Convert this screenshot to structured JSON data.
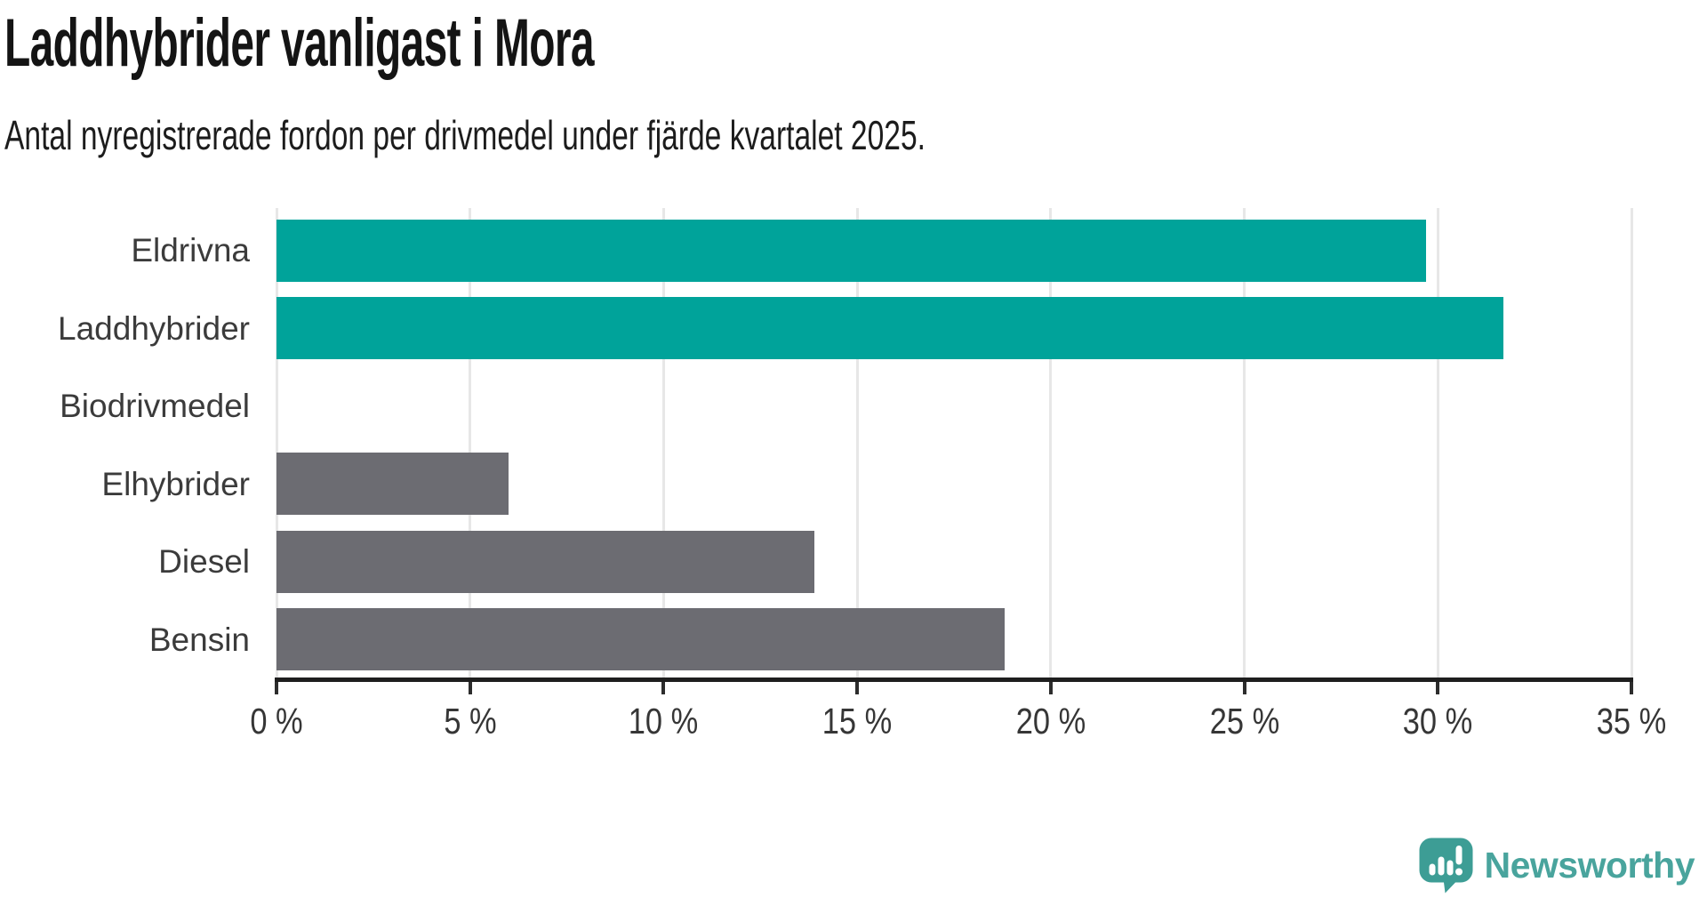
{
  "chart_data": {
    "type": "bar",
    "orientation": "horizontal",
    "title": "Laddhybrider vanligast i Mora",
    "subtitle": "Antal nyregistrerade fordon per drivmedel under fjärde kvartalet 2025.",
    "categories": [
      "Eldrivna",
      "Laddhybrider",
      "Biodrivmedel",
      "Elhybrider",
      "Diesel",
      "Bensin"
    ],
    "values": [
      29.7,
      31.7,
      0,
      6.0,
      13.9,
      18.8
    ],
    "unit": "%",
    "xlim": [
      0,
      35
    ],
    "x_tick_values": [
      0,
      5,
      10,
      15,
      20,
      25,
      30,
      35
    ],
    "x_tick_labels": [
      "0 %",
      "5 %",
      "10 %",
      "15 %",
      "20 %",
      "25 %",
      "30 %",
      "35 %"
    ],
    "bar_colors": [
      "#00a39a",
      "#00a39a",
      "#6c6c72",
      "#6c6c72",
      "#6c6c72",
      "#6c6c72"
    ],
    "highlight_color": "#00a39a",
    "default_color": "#6c6c72",
    "grid": true,
    "legend": false,
    "ylabel": "",
    "xlabel": ""
  },
  "branding": {
    "logo_text": "Newsworthy",
    "logo_color": "#49a49d",
    "logo_icon": "newsworthy-speech-bubble-barchart-icon",
    "icon_color": "#3d9d95"
  }
}
